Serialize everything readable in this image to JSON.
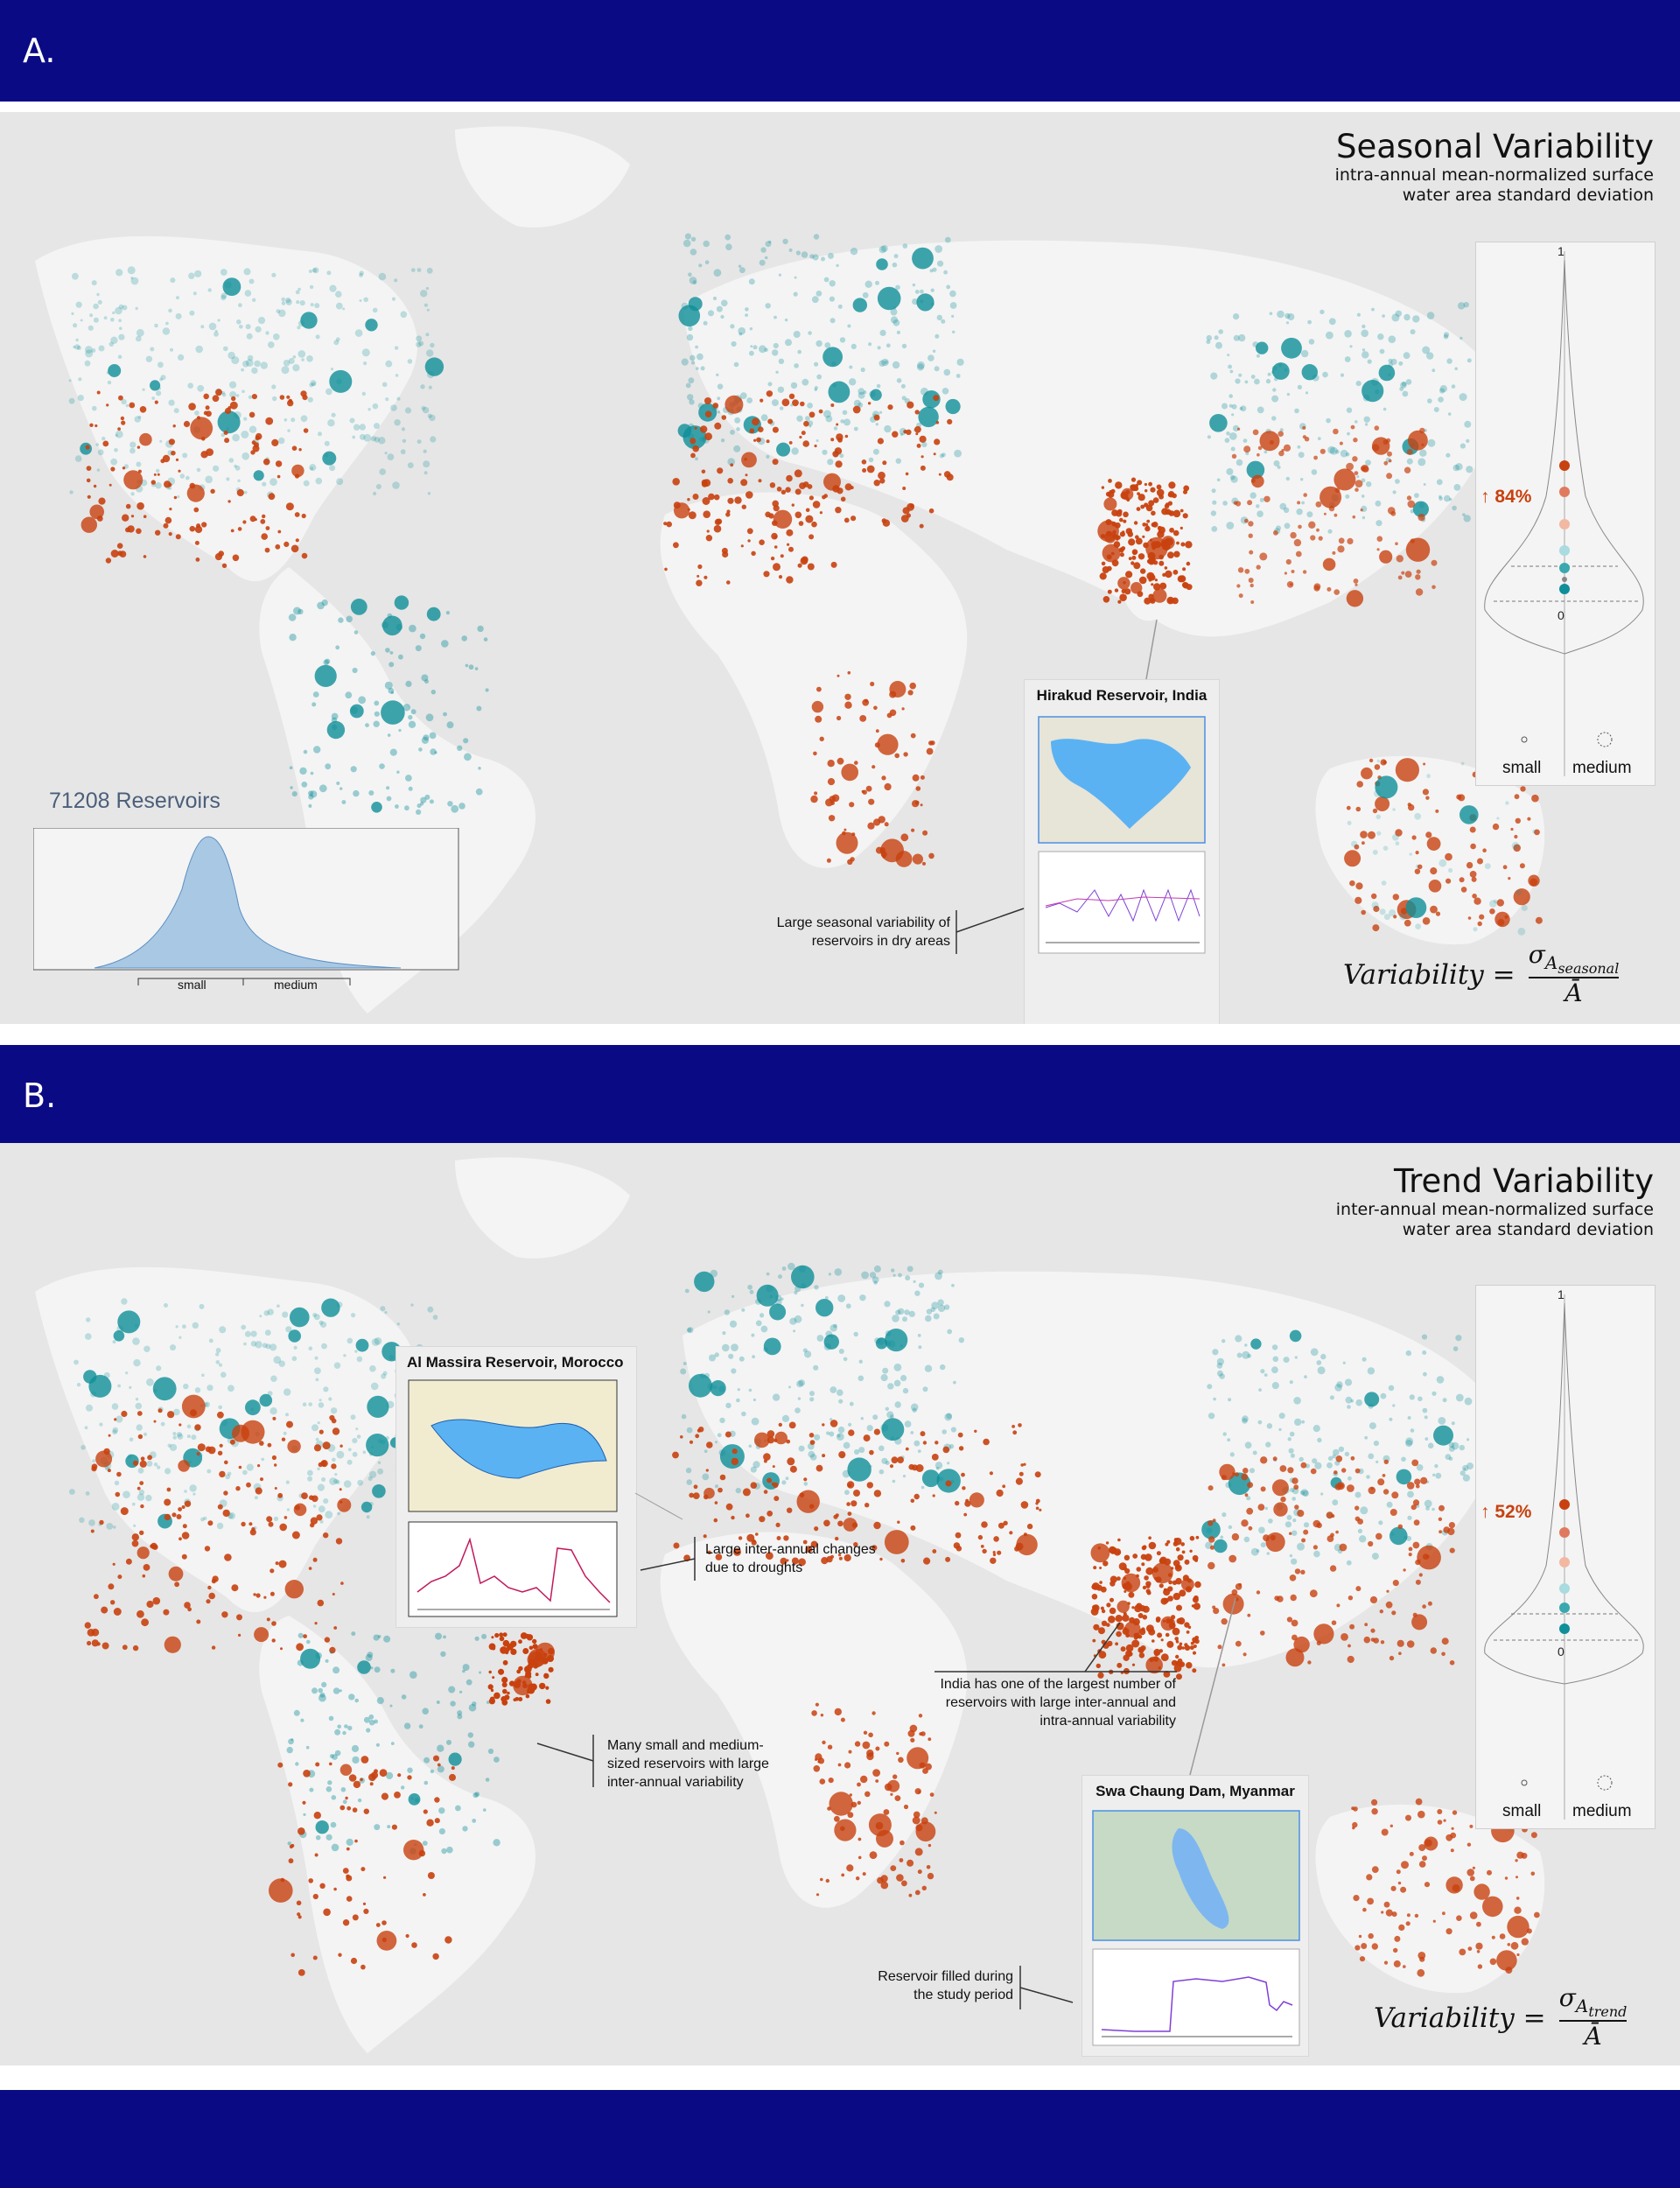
{
  "figure": {
    "panel_a_label": "A.",
    "panel_b_label": "B.",
    "colors": {
      "band": "#0a0a85",
      "low_variability": "#0f8f99",
      "high_variability": "#c8410f",
      "water": "#5ab2f2"
    }
  },
  "panel_a": {
    "title": "Seasonal Variability",
    "subtitle_line1": "intra-annual mean-normalized surface",
    "subtitle_line2": "water area standard deviation",
    "violin": {
      "tick_top": "1",
      "tick_bottom": "0",
      "percent": "↑ 84%",
      "size_small": "small",
      "size_medium": "medium"
    },
    "histogram": {
      "title": "71208 Reservoirs",
      "size_small": "small",
      "size_medium": "medium"
    },
    "inset": {
      "title": "Hirakud Reservoir, India"
    },
    "note_line1": "Large seasonal variability of",
    "note_line2": "reservoirs in dry areas",
    "formula": {
      "lhs": "Variability =",
      "numerator": "σ",
      "numerator_sub": "A",
      "numerator_subsub": "seasonal",
      "denominator": "Ā"
    }
  },
  "panel_b": {
    "title": "Trend Variability",
    "subtitle_line1": "inter-annual mean-normalized surface",
    "subtitle_line2": "water area standard deviation",
    "violin": {
      "tick_top": "1",
      "tick_bottom": "0",
      "percent": "↑ 52%",
      "size_small": "small",
      "size_medium": "medium"
    },
    "inset_morocco": {
      "title": "Al Massira Reservoir, Morocco"
    },
    "inset_myanmar": {
      "title": "Swa Chaung Dam, Myanmar"
    },
    "note_droughts_line1": "Large inter-annual changes",
    "note_droughts_line2": "due to droughts",
    "note_india_line1": "India has one of the largest number of",
    "note_india_line2": "reservoirs with large inter-annual and",
    "note_india_line3": "intra-annual variability",
    "note_brazil_line1": "Many small and medium-",
    "note_brazil_line2": "sized reservoirs with large",
    "note_brazil_line3": "inter-annual variability",
    "note_filled_line1": "Reservoir filled during",
    "note_filled_line2": "the study period",
    "formula": {
      "lhs": "Variability =",
      "numerator": "σ",
      "numerator_sub": "A",
      "numerator_subsub": "trend",
      "denominator": "Ā"
    }
  }
}
